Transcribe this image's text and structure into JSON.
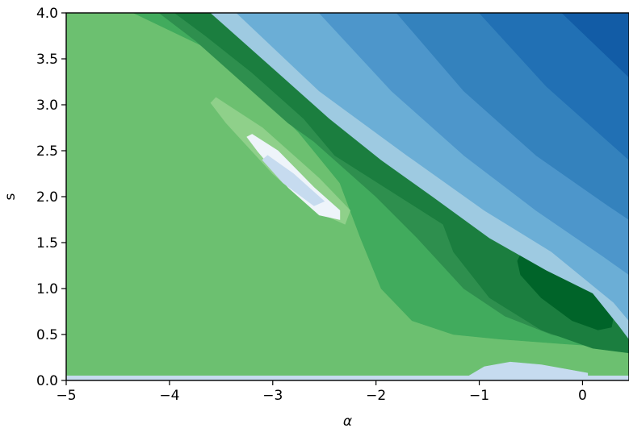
{
  "chart_data": {
    "type": "contour",
    "xlabel": "α",
    "ylabel": "s",
    "xlim": [
      -5,
      0.45
    ],
    "ylim": [
      0.0,
      4.0
    ],
    "x_ticks": [
      -5,
      -4,
      -3,
      -2,
      -1,
      0
    ],
    "x_tick_labels": [
      "−5",
      "−4",
      "−3",
      "−2",
      "−1",
      "0"
    ],
    "y_ticks": [
      0.0,
      0.5,
      1.0,
      1.5,
      2.0,
      2.5,
      3.0,
      3.5,
      4.0
    ],
    "y_tick_labels": [
      "0.0",
      "0.5",
      "1.0",
      "1.5",
      "2.0",
      "2.5",
      "3.0",
      "3.5",
      "4.0"
    ],
    "grid": false,
    "colormap": "green (high) to blue (low), diverging at white contour",
    "colors": {
      "green_base": "#6cc070",
      "green_mid": "#41ab5d",
      "green_dark": "#2e8f4e",
      "green_darker": "#1b7e3f",
      "green_darkest": "#006429",
      "green_light": "#8fd08a",
      "white_line": "#eef4fa",
      "blue_lightest": "#c6dbef",
      "blue_1": "#9ecae1",
      "blue_2": "#6baed6",
      "blue_3": "#4d96cb",
      "blue_4": "#3482bd",
      "blue_5": "#2170b4",
      "blue_6": "#125ca6",
      "axis": "#000000"
    },
    "regions": [
      {
        "fill": "green_base",
        "points": [
          [
            -5,
            0.05
          ],
          [
            0.45,
            0.05
          ],
          [
            0.45,
            4
          ],
          [
            -5,
            4
          ]
        ]
      },
      {
        "fill": "blue_lightest",
        "points": [
          [
            -5,
            0
          ],
          [
            0.45,
            0
          ],
          [
            0.45,
            0.05
          ],
          [
            -5,
            0.05
          ]
        ]
      },
      {
        "fill": "green_mid",
        "points": [
          [
            -4.35,
            4
          ],
          [
            -3.7,
            3.65
          ],
          [
            -3.2,
            3.2
          ],
          [
            -2.75,
            2.7
          ],
          [
            -2.35,
            2.15
          ],
          [
            -2.15,
            1.55
          ],
          [
            -1.95,
            1.0
          ],
          [
            -1.65,
            0.65
          ],
          [
            -1.25,
            0.5
          ],
          [
            -0.8,
            0.45
          ],
          [
            -0.2,
            0.4
          ],
          [
            0.45,
            0.35
          ],
          [
            0.45,
            4
          ]
        ]
      },
      {
        "fill": "green_light",
        "points": [
          [
            -3.55,
            3.08
          ],
          [
            -3.1,
            2.75
          ],
          [
            -2.55,
            2.2
          ],
          [
            -2.25,
            1.85
          ],
          [
            -2.3,
            1.7
          ],
          [
            -2.6,
            1.85
          ],
          [
            -3.0,
            2.25
          ],
          [
            -3.45,
            2.8
          ],
          [
            -3.6,
            3.02
          ]
        ]
      },
      {
        "fill": "green_dark",
        "points": [
          [
            -4.1,
            4
          ],
          [
            -3.75,
            3.7
          ],
          [
            -3.35,
            3.3
          ],
          [
            -2.85,
            2.8
          ],
          [
            -2.6,
            2.6
          ],
          [
            -2.0,
            2.0
          ],
          [
            -1.6,
            1.55
          ],
          [
            -1.15,
            1.0
          ],
          [
            -0.75,
            0.7
          ],
          [
            -0.3,
            0.5
          ],
          [
            0.1,
            0.4
          ],
          [
            0.45,
            0.4
          ],
          [
            0.45,
            4
          ]
        ]
      },
      {
        "fill": "green_darker",
        "points": [
          [
            -3.95,
            4
          ],
          [
            -3.65,
            3.75
          ],
          [
            -3.2,
            3.35
          ],
          [
            -2.7,
            2.85
          ],
          [
            -2.4,
            2.45
          ],
          [
            -1.35,
            1.7
          ],
          [
            -1.25,
            1.4
          ],
          [
            -0.9,
            0.9
          ],
          [
            -0.4,
            0.55
          ],
          [
            0.1,
            0.35
          ],
          [
            0.45,
            0.3
          ],
          [
            0.45,
            4
          ]
        ]
      },
      {
        "fill": "green_darkest",
        "points": [
          [
            -0.6,
            1.37
          ],
          [
            -0.3,
            1.28
          ],
          [
            0.05,
            1.05
          ],
          [
            0.3,
            0.7
          ],
          [
            0.28,
            0.58
          ],
          [
            0.15,
            0.55
          ],
          [
            -0.1,
            0.65
          ],
          [
            -0.4,
            0.9
          ],
          [
            -0.6,
            1.15
          ],
          [
            -0.63,
            1.3
          ]
        ]
      },
      {
        "fill": "blue_lightest",
        "points": [
          [
            -1.1,
            0.05
          ],
          [
            -0.95,
            0.15
          ],
          [
            -0.7,
            0.2
          ],
          [
            -0.4,
            0.17
          ],
          [
            -0.15,
            0.12
          ],
          [
            0.05,
            0.08
          ],
          [
            0.05,
            0.05
          ]
        ]
      },
      {
        "fill": "blue_1",
        "points": [
          [
            -3.6,
            4
          ],
          [
            -3.3,
            3.7
          ],
          [
            -2.9,
            3.3
          ],
          [
            -2.45,
            2.85
          ],
          [
            -1.95,
            2.4
          ],
          [
            -1.45,
            2.0
          ],
          [
            -0.9,
            1.55
          ],
          [
            -0.35,
            1.2
          ],
          [
            0.1,
            0.95
          ],
          [
            0.35,
            0.6
          ],
          [
            0.45,
            0.45
          ],
          [
            0.45,
            4
          ]
        ]
      },
      {
        "fill": "blue_2",
        "points": [
          [
            -3.35,
            4
          ],
          [
            -2.55,
            3.15
          ],
          [
            -1.7,
            2.45
          ],
          [
            -0.95,
            1.85
          ],
          [
            -0.3,
            1.4
          ],
          [
            0.3,
            0.85
          ],
          [
            0.45,
            0.65
          ],
          [
            0.45,
            4
          ]
        ]
      },
      {
        "fill": "blue_3",
        "points": [
          [
            -2.55,
            4
          ],
          [
            -1.85,
            3.15
          ],
          [
            -1.15,
            2.45
          ],
          [
            -0.45,
            1.85
          ],
          [
            0.2,
            1.35
          ],
          [
            0.45,
            1.15
          ],
          [
            0.45,
            4
          ]
        ]
      },
      {
        "fill": "blue_4",
        "points": [
          [
            -1.8,
            4
          ],
          [
            -1.15,
            3.15
          ],
          [
            -0.45,
            2.45
          ],
          [
            0.25,
            1.9
          ],
          [
            0.45,
            1.75
          ],
          [
            0.45,
            4
          ]
        ]
      },
      {
        "fill": "blue_5",
        "points": [
          [
            -1.0,
            4
          ],
          [
            -0.35,
            3.2
          ],
          [
            0.3,
            2.55
          ],
          [
            0.45,
            2.4
          ],
          [
            0.45,
            4
          ]
        ]
      },
      {
        "fill": "blue_6",
        "points": [
          [
            -0.2,
            4
          ],
          [
            0.45,
            3.3
          ],
          [
            0.45,
            4
          ]
        ]
      },
      {
        "fill": "white_line",
        "points": [
          [
            -3.2,
            2.68
          ],
          [
            -2.95,
            2.5
          ],
          [
            -2.6,
            2.1
          ],
          [
            -2.35,
            1.85
          ],
          [
            -2.35,
            1.75
          ],
          [
            -2.55,
            1.8
          ],
          [
            -2.85,
            2.1
          ],
          [
            -3.15,
            2.5
          ],
          [
            -3.25,
            2.65
          ]
        ]
      },
      {
        "fill": "blue_lightest",
        "points": [
          [
            -3.05,
            2.45
          ],
          [
            -2.8,
            2.25
          ],
          [
            -2.5,
            1.95
          ],
          [
            -2.6,
            1.9
          ],
          [
            -2.9,
            2.15
          ],
          [
            -3.1,
            2.4
          ]
        ]
      }
    ]
  }
}
